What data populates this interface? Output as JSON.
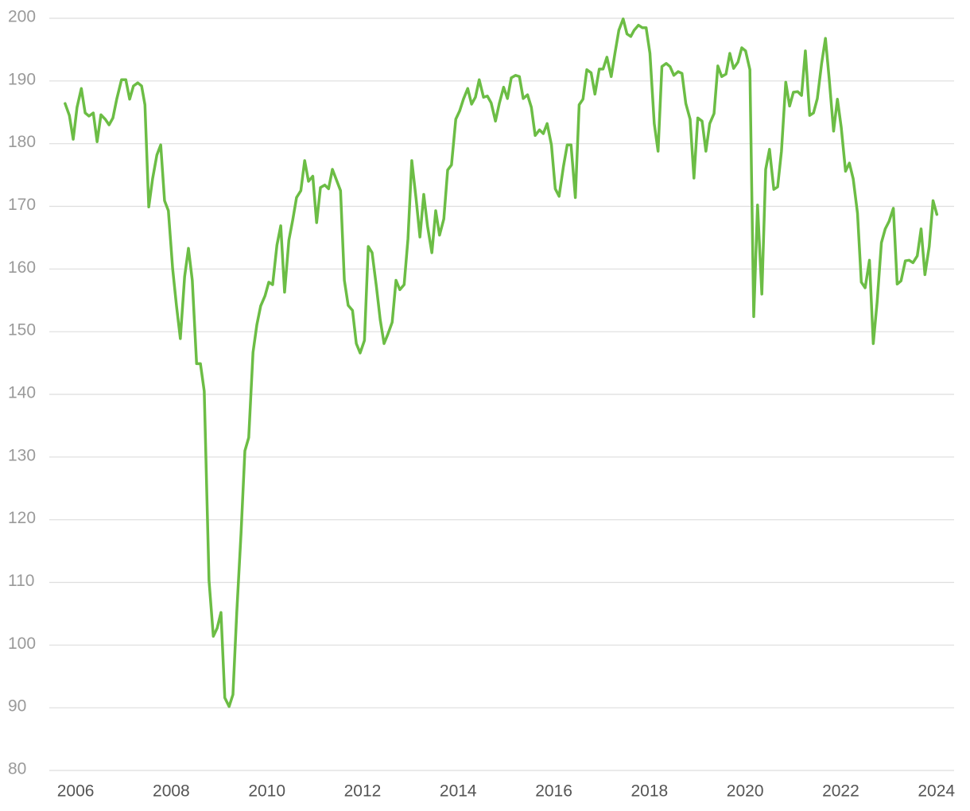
{
  "chart_data": {
    "type": "line",
    "color": "#6cbd45",
    "grid": true,
    "xlim": [
      2005.45,
      2024.37
    ],
    "xticks": [
      2006,
      2008,
      2010,
      2012,
      2014,
      2016,
      2018,
      2020,
      2022,
      2024
    ],
    "ylim": [
      80,
      200
    ],
    "yticks": [
      80,
      90,
      100,
      110,
      120,
      130,
      140,
      150,
      160,
      170,
      180,
      190,
      200
    ],
    "x": [
      2005.78,
      2005.87,
      2005.95,
      2006.03,
      2006.12,
      2006.2,
      2006.28,
      2006.37,
      2006.45,
      2006.53,
      2006.62,
      2006.7,
      2006.78,
      2006.86,
      2006.96,
      2007.05,
      2007.13,
      2007.21,
      2007.3,
      2007.38,
      2007.45,
      2007.53,
      2007.61,
      2007.7,
      2007.78,
      2007.86,
      2007.94,
      2008.03,
      2008.11,
      2008.19,
      2008.28,
      2008.36,
      2008.44,
      2008.53,
      2008.61,
      2008.69,
      2008.79,
      2008.88,
      2008.96,
      2009.04,
      2009.12,
      2009.21,
      2009.29,
      2009.37,
      2009.46,
      2009.54,
      2009.62,
      2009.71,
      2009.79,
      2009.87,
      2009.96,
      2010.04,
      2010.12,
      2010.21,
      2010.29,
      2010.37,
      2010.46,
      2010.54,
      2010.62,
      2010.71,
      2010.79,
      2010.87,
      2010.96,
      2011.04,
      2011.12,
      2011.21,
      2011.29,
      2011.37,
      2011.46,
      2011.54,
      2011.62,
      2011.7,
      2011.79,
      2011.87,
      2011.95,
      2012.04,
      2012.12,
      2012.2,
      2012.29,
      2012.37,
      2012.45,
      2012.53,
      2012.62,
      2012.7,
      2012.78,
      2012.87,
      2012.95,
      2013.03,
      2013.12,
      2013.2,
      2013.28,
      2013.36,
      2013.45,
      2013.53,
      2013.61,
      2013.7,
      2013.78,
      2013.86,
      2013.95,
      2014.03,
      2014.11,
      2014.2,
      2014.28,
      2014.36,
      2014.44,
      2014.53,
      2014.61,
      2014.69,
      2014.78,
      2014.86,
      2014.95,
      2015.03,
      2015.11,
      2015.2,
      2015.28,
      2015.36,
      2015.45,
      2015.53,
      2015.61,
      2015.7,
      2015.78,
      2015.86,
      2015.95,
      2016.03,
      2016.11,
      2016.2,
      2016.28,
      2016.36,
      2016.45,
      2016.53,
      2016.61,
      2016.69,
      2016.78,
      2016.86,
      2016.95,
      2017.03,
      2017.11,
      2017.2,
      2017.28,
      2017.36,
      2017.45,
      2017.53,
      2017.61,
      2017.68,
      2017.77,
      2017.85,
      2017.93,
      2018.01,
      2018.1,
      2018.18,
      2018.26,
      2018.35,
      2018.43,
      2018.51,
      2018.6,
      2018.68,
      2018.76,
      2018.85,
      2018.93,
      2019.01,
      2019.1,
      2019.18,
      2019.26,
      2019.35,
      2019.43,
      2019.51,
      2019.6,
      2019.68,
      2019.76,
      2019.85,
      2019.93,
      2020.01,
      2020.1,
      2020.18,
      2020.26,
      2020.35,
      2020.43,
      2020.51,
      2020.6,
      2020.68,
      2020.76,
      2020.85,
      2020.93,
      2021.01,
      2021.1,
      2021.18,
      2021.26,
      2021.35,
      2021.43,
      2021.51,
      2021.6,
      2021.68,
      2021.76,
      2021.85,
      2021.93,
      2022.01,
      2022.1,
      2022.18,
      2022.26,
      2022.35,
      2022.43,
      2022.51,
      2022.6,
      2022.68,
      2022.76,
      2022.85,
      2022.93,
      2023.01,
      2023.1,
      2023.18,
      2023.26,
      2023.35,
      2023.43,
      2023.51,
      2023.6,
      2023.68,
      2023.76,
      2023.85,
      2023.93,
      2024.01
    ],
    "values": [
      186.4,
      184.5,
      180.7,
      185.8,
      188.8,
      184.9,
      184.4,
      184.9,
      180.3,
      184.6,
      183.9,
      183,
      184.1,
      187.1,
      190.2,
      190.2,
      187.1,
      189.2,
      189.7,
      189.2,
      186.2,
      169.9,
      174.4,
      178.2,
      179.8,
      170.9,
      169.3,
      160,
      154.1,
      148.9,
      158.8,
      163.3,
      158.2,
      144.9,
      144.9,
      140.5,
      110.3,
      101.4,
      102.7,
      105.2,
      91.6,
      90.2,
      92.1,
      105.2,
      117.9,
      131,
      133.1,
      146.7,
      151.1,
      154.1,
      155.7,
      157.9,
      157.5,
      163.8,
      166.9,
      156.3,
      164.6,
      167.8,
      171.4,
      172.5,
      177.3,
      174,
      174.8,
      167.4,
      173,
      173.4,
      172.8,
      175.9,
      174.1,
      172.5,
      158.2,
      154.2,
      153.4,
      148.1,
      146.6,
      148.6,
      163.6,
      162.6,
      157.2,
      151.9,
      148.1,
      149.6,
      151.5,
      158.2,
      156.7,
      157.5,
      164.8,
      177.3,
      171.2,
      165.1,
      171.9,
      166.8,
      162.6,
      169.3,
      165.4,
      168,
      175.8,
      176.6,
      183.9,
      185.2,
      187.1,
      188.8,
      186.3,
      187.4,
      190.2,
      187.4,
      187.6,
      186.5,
      183.6,
      186.4,
      189,
      187.2,
      190.5,
      190.9,
      190.7,
      187.2,
      187.8,
      185.8,
      181.3,
      182.2,
      181.6,
      183.2,
      179.8,
      172.8,
      171.6,
      176.3,
      179.8,
      179.8,
      171.4,
      186.2,
      187.1,
      191.8,
      191.3,
      187.9,
      191.9,
      191.9,
      193.8,
      190.7,
      194.5,
      198.1,
      199.9,
      197.5,
      197.1,
      198.1,
      198.9,
      198.5,
      198.5,
      194.4,
      183.2,
      178.8,
      192.3,
      192.8,
      192.3,
      190.9,
      191.5,
      191.2,
      186.4,
      183.9,
      174.5,
      184.1,
      183.6,
      178.8,
      183.2,
      184.8,
      192.4,
      190.7,
      191.1,
      194.4,
      192,
      193,
      195.3,
      194.8,
      191.8,
      152.4,
      170.2,
      156,
      175.9,
      179.1,
      172.7,
      173.1,
      178.8,
      189.8,
      186,
      188.2,
      188.3,
      187.7,
      194.8,
      184.5,
      184.9,
      187.2,
      192.8,
      196.8,
      190.2,
      182,
      187.1,
      182.6,
      175.6,
      176.9,
      174.4,
      168.9,
      157.9,
      157,
      161.4,
      148.1,
      154.7,
      164.2,
      166.4,
      167.6,
      169.7,
      157.6,
      158.1,
      161.3,
      161.4,
      161,
      162.1,
      166.4,
      159.1,
      163.6,
      170.9,
      168.7
    ]
  }
}
